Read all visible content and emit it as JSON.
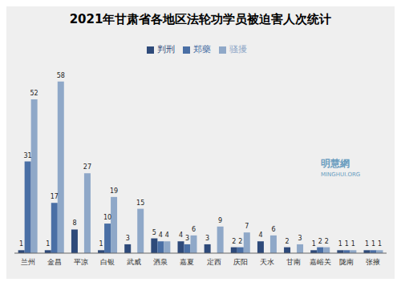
{
  "chart_data": {
    "type": "bar",
    "title": "2021年甘肃省各地区法轮功学员被迫害人次统计",
    "categories": [
      "兰州",
      "金昌",
      "平凉",
      "白银",
      "武威",
      "酒泉",
      "嘉夏",
      "定西",
      "庆阳",
      "天水",
      "甘南",
      "嘉峪关",
      "陇南",
      "张掖"
    ],
    "series": [
      {
        "name": "判刑",
        "color": "#2E4A7A",
        "values": [
          1,
          1,
          8,
          1,
          3,
          5,
          4,
          3,
          2,
          4,
          2,
          1,
          1,
          1
        ],
        "value_labels": [
          "1",
          "1",
          "8",
          "1",
          "3",
          "5",
          "4",
          "3",
          "2",
          "4",
          "2",
          "1",
          "1",
          "1"
        ]
      },
      {
        "name": "郑藥",
        "color": "#4A6FA5",
        "values": [
          31,
          17,
          0,
          10,
          0,
          4,
          3,
          0,
          2,
          0,
          0,
          2,
          1,
          1
        ],
        "value_labels": [
          "31",
          "17",
          null,
          "10",
          null,
          "4",
          "3",
          null,
          "2",
          null,
          null,
          "2",
          "1",
          "1"
        ]
      },
      {
        "name": "骚擾",
        "color": "#8FA8C8",
        "values": [
          52,
          58,
          27,
          19,
          15,
          4,
          6,
          9,
          7,
          6,
          3,
          2,
          1,
          1
        ],
        "value_labels": [
          "52",
          "58",
          "27",
          "19",
          "15",
          "4",
          "6",
          "9",
          "7",
          "6",
          "3",
          "2",
          "1",
          "1"
        ]
      }
    ],
    "ylim": [
      0,
      65
    ],
    "grid": false,
    "legend": "top",
    "data_labels": true,
    "tick_labels": "x",
    "annotations": [
      {
        "text": "明慧網",
        "color": "#6A9DBF"
      },
      {
        "text": "MINGHUI.ORG",
        "color": "#6A9DBF"
      }
    ]
  }
}
